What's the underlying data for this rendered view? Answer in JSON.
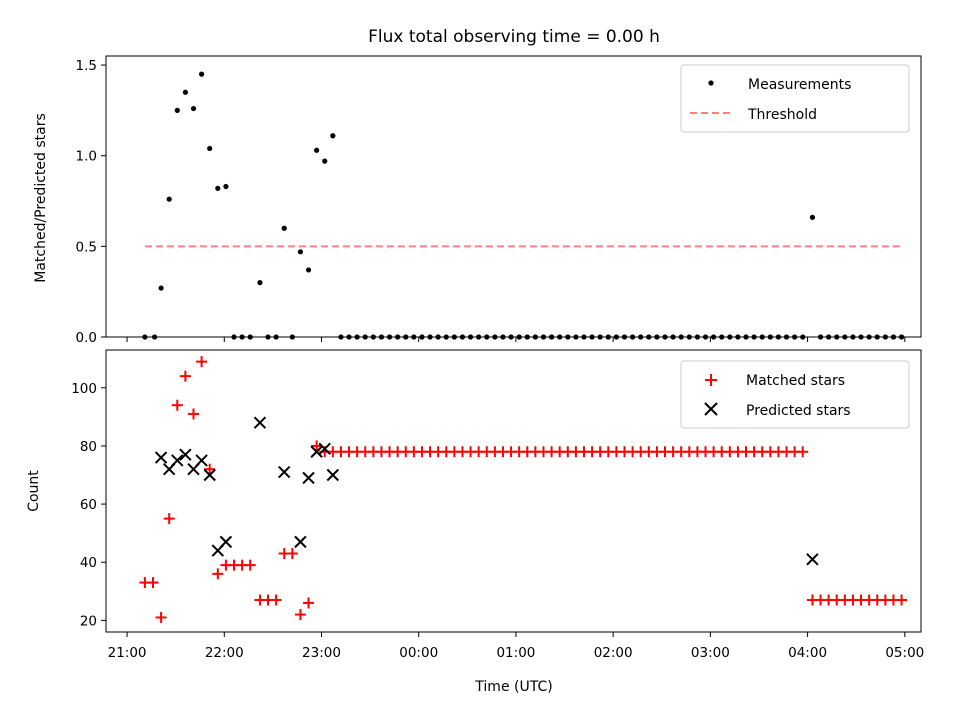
{
  "chart_data": [
    {
      "type": "scatter",
      "title": "Flux total observing time = 0.00 h",
      "xlabel": "",
      "ylabel": "Matched/Predicted stars",
      "ylim": [
        0,
        1.55
      ],
      "yticks": [
        0.0,
        0.5,
        1.0,
        1.5
      ],
      "yticklabels": [
        "0.0",
        "0.5",
        "1.0",
        "1.5"
      ],
      "x_unit": "minutes after 21:00 UTC",
      "xlim": [
        -13,
        490
      ],
      "legend_placement": "top-right",
      "series": [
        {
          "name": "Measurements",
          "kind": "points",
          "color": "#000000",
          "points": [
            [
              11,
              0.0
            ],
            [
              17,
              0.0
            ],
            [
              21,
              0.27
            ],
            [
              26,
              0.76
            ],
            [
              31,
              1.25
            ],
            [
              36,
              1.35
            ],
            [
              41,
              1.26
            ],
            [
              46,
              1.45
            ],
            [
              51,
              1.04
            ],
            [
              56,
              0.82
            ],
            [
              61,
              0.83
            ],
            [
              66,
              0.0
            ],
            [
              71,
              0.0
            ],
            [
              76,
              0.0
            ],
            [
              82,
              0.3
            ],
            [
              87,
              0.0
            ],
            [
              92,
              0.0
            ],
            [
              97,
              0.6
            ],
            [
              102,
              0.0
            ],
            [
              107,
              0.47
            ],
            [
              112,
              0.37
            ],
            [
              117,
              1.03
            ],
            [
              122,
              0.97
            ],
            [
              127,
              1.11
            ],
            [
              132,
              0.0
            ],
            [
              137,
              0.0
            ],
            [
              142,
              0.0
            ],
            [
              147,
              0.0
            ],
            [
              152,
              0.0
            ],
            [
              157,
              0.0
            ],
            [
              162,
              0.0
            ],
            [
              167,
              0.0
            ],
            [
              172,
              0.0
            ],
            [
              177,
              0.0
            ],
            [
              182,
              0.0
            ],
            [
              187,
              0.0
            ],
            [
              192,
              0.0
            ],
            [
              197,
              0.0
            ],
            [
              202,
              0.0
            ],
            [
              207,
              0.0
            ],
            [
              212,
              0.0
            ],
            [
              217,
              0.0
            ],
            [
              222,
              0.0
            ],
            [
              227,
              0.0
            ],
            [
              232,
              0.0
            ],
            [
              237,
              0.0
            ],
            [
              242,
              0.0
            ],
            [
              247,
              0.0
            ],
            [
              252,
              0.0
            ],
            [
              257,
              0.0
            ],
            [
              262,
              0.0
            ],
            [
              267,
              0.0
            ],
            [
              272,
              0.0
            ],
            [
              277,
              0.0
            ],
            [
              282,
              0.0
            ],
            [
              287,
              0.0
            ],
            [
              292,
              0.0
            ],
            [
              297,
              0.0
            ],
            [
              302,
              0.0
            ],
            [
              307,
              0.0
            ],
            [
              312,
              0.0
            ],
            [
              317,
              0.0
            ],
            [
              322,
              0.0
            ],
            [
              327,
              0.0
            ],
            [
              332,
              0.0
            ],
            [
              337,
              0.0
            ],
            [
              342,
              0.0
            ],
            [
              347,
              0.0
            ],
            [
              352,
              0.0
            ],
            [
              357,
              0.0
            ],
            [
              362,
              0.0
            ],
            [
              367,
              0.0
            ],
            [
              372,
              0.0
            ],
            [
              377,
              0.0
            ],
            [
              382,
              0.0
            ],
            [
              387,
              0.0
            ],
            [
              392,
              0.0
            ],
            [
              397,
              0.0
            ],
            [
              402,
              0.0
            ],
            [
              407,
              0.0
            ],
            [
              412,
              0.0
            ],
            [
              417,
              0.0
            ],
            [
              423,
              0.66
            ],
            [
              428,
              0.0
            ],
            [
              433,
              0.0
            ],
            [
              438,
              0.0
            ],
            [
              443,
              0.0
            ],
            [
              448,
              0.0
            ],
            [
              453,
              0.0
            ],
            [
              458,
              0.0
            ],
            [
              463,
              0.0
            ],
            [
              468,
              0.0
            ],
            [
              473,
              0.0
            ],
            [
              478,
              0.0
            ]
          ]
        },
        {
          "name": "Threshold",
          "kind": "dashed-line",
          "color": "#ff8080",
          "x": [
            11,
            478
          ],
          "y": [
            0.5,
            0.5
          ]
        }
      ]
    },
    {
      "type": "scatter",
      "title": "",
      "xlabel": "Time (UTC)",
      "ylabel": "Count",
      "ylim": [
        16,
        113
      ],
      "yticks": [
        20,
        40,
        60,
        80,
        100
      ],
      "yticklabels": [
        "20",
        "40",
        "60",
        "80",
        "100"
      ],
      "xticks": [
        0,
        60,
        120,
        180,
        240,
        300,
        360,
        420,
        480
      ],
      "xticklabels": [
        "21:00",
        "22:00",
        "23:00",
        "00:00",
        "01:00",
        "02:00",
        "03:00",
        "04:00",
        "05:00"
      ],
      "x_unit": "minutes after 21:00 UTC",
      "xlim": [
        -13,
        490
      ],
      "legend_placement": "top-right",
      "series": [
        {
          "name": "Matched stars",
          "kind": "plus",
          "color": "#ff0000",
          "points": [
            [
              11,
              33
            ],
            [
              16,
              33
            ],
            [
              21,
              21
            ],
            [
              26,
              55
            ],
            [
              31,
              94
            ],
            [
              36,
              104
            ],
            [
              41,
              91
            ],
            [
              46,
              109
            ],
            [
              51,
              72
            ],
            [
              56,
              36
            ],
            [
              61,
              39
            ],
            [
              66,
              39
            ],
            [
              71,
              39
            ],
            [
              76,
              39
            ],
            [
              82,
              27
            ],
            [
              87,
              27
            ],
            [
              92,
              27
            ],
            [
              97,
              43
            ],
            [
              102,
              43
            ],
            [
              107,
              22
            ],
            [
              112,
              26
            ],
            [
              117,
              80
            ],
            [
              122,
              78
            ],
            [
              127,
              78
            ],
            [
              132,
              78
            ],
            [
              137,
              78
            ],
            [
              142,
              78
            ],
            [
              147,
              78
            ],
            [
              152,
              78
            ],
            [
              157,
              78
            ],
            [
              162,
              78
            ],
            [
              167,
              78
            ],
            [
              172,
              78
            ],
            [
              177,
              78
            ],
            [
              182,
              78
            ],
            [
              187,
              78
            ],
            [
              192,
              78
            ],
            [
              197,
              78
            ],
            [
              202,
              78
            ],
            [
              207,
              78
            ],
            [
              212,
              78
            ],
            [
              217,
              78
            ],
            [
              222,
              78
            ],
            [
              227,
              78
            ],
            [
              232,
              78
            ],
            [
              237,
              78
            ],
            [
              242,
              78
            ],
            [
              247,
              78
            ],
            [
              252,
              78
            ],
            [
              257,
              78
            ],
            [
              262,
              78
            ],
            [
              267,
              78
            ],
            [
              272,
              78
            ],
            [
              277,
              78
            ],
            [
              282,
              78
            ],
            [
              287,
              78
            ],
            [
              292,
              78
            ],
            [
              297,
              78
            ],
            [
              302,
              78
            ],
            [
              307,
              78
            ],
            [
              312,
              78
            ],
            [
              317,
              78
            ],
            [
              322,
              78
            ],
            [
              327,
              78
            ],
            [
              332,
              78
            ],
            [
              337,
              78
            ],
            [
              342,
              78
            ],
            [
              347,
              78
            ],
            [
              352,
              78
            ],
            [
              357,
              78
            ],
            [
              362,
              78
            ],
            [
              367,
              78
            ],
            [
              372,
              78
            ],
            [
              377,
              78
            ],
            [
              382,
              78
            ],
            [
              387,
              78
            ],
            [
              392,
              78
            ],
            [
              397,
              78
            ],
            [
              402,
              78
            ],
            [
              407,
              78
            ],
            [
              412,
              78
            ],
            [
              417,
              78
            ],
            [
              423,
              27
            ],
            [
              428,
              27
            ],
            [
              433,
              27
            ],
            [
              438,
              27
            ],
            [
              443,
              27
            ],
            [
              448,
              27
            ],
            [
              453,
              27
            ],
            [
              458,
              27
            ],
            [
              463,
              27
            ],
            [
              468,
              27
            ],
            [
              473,
              27
            ],
            [
              478,
              27
            ]
          ]
        },
        {
          "name": "Predicted stars",
          "kind": "x",
          "color": "#000000",
          "points": [
            [
              21,
              76
            ],
            [
              26,
              72
            ],
            [
              31,
              75
            ],
            [
              36,
              77
            ],
            [
              41,
              72
            ],
            [
              46,
              75
            ],
            [
              51,
              70
            ],
            [
              56,
              44
            ],
            [
              61,
              47
            ],
            [
              82,
              88
            ],
            [
              97,
              71
            ],
            [
              112,
              69
            ],
            [
              107,
              47
            ],
            [
              117,
              78
            ],
            [
              122,
              79
            ],
            [
              127,
              70
            ],
            [
              423,
              41
            ]
          ]
        }
      ]
    }
  ]
}
